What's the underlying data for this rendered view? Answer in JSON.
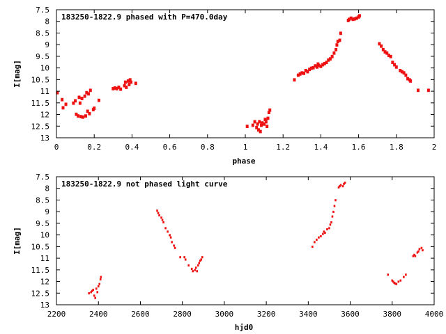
{
  "colors": {
    "points": "#ee1111",
    "frame": "#000000",
    "background": "#ffffff"
  },
  "chart_data": [
    {
      "type": "scatter",
      "title": "183250-1822.9 phased with P=470.0day",
      "xlabel": "phase",
      "ylabel": "I[mag]",
      "xlim": [
        0,
        2
      ],
      "ylim": [
        13,
        7.5
      ],
      "y_inverted": true,
      "grid": false,
      "x_ticks": [
        0,
        0.2,
        0.4,
        0.6,
        0.8,
        1,
        1.2,
        1.4,
        1.6,
        1.8,
        2
      ],
      "x_tick_labels": [
        "0",
        "0.2",
        "0.4",
        "0.6",
        "0.8",
        "1",
        "1.2",
        "1.4",
        "1.6",
        "1.8",
        "2"
      ],
      "y_ticks": [
        7.5,
        8,
        8.5,
        9,
        9.5,
        10,
        10.5,
        11,
        11.5,
        12,
        12.5,
        13
      ],
      "y_tick_labels": [
        "7.5",
        "8",
        "8.5",
        "9",
        "9.5",
        "10",
        "10.5",
        "11",
        "11.5",
        "12",
        "12.5",
        "13"
      ],
      "series": [
        {
          "points": [
            [
              0.005,
              11.05
            ],
            [
              0.03,
              11.35
            ],
            [
              0.035,
              11.7
            ],
            [
              0.05,
              11.55
            ],
            [
              0.09,
              11.5
            ],
            [
              0.1,
              11.4
            ],
            [
              0.105,
              11.98
            ],
            [
              0.115,
              12.05
            ],
            [
              0.12,
              11.25
            ],
            [
              0.125,
              11.5
            ],
            [
              0.13,
              12.08
            ],
            [
              0.135,
              11.3
            ],
            [
              0.14,
              12.1
            ],
            [
              0.15,
              11.2
            ],
            [
              0.155,
              12.05
            ],
            [
              0.16,
              11.05
            ],
            [
              0.165,
              11.85
            ],
            [
              0.17,
              11.1
            ],
            [
              0.175,
              11.95
            ],
            [
              0.18,
              10.95
            ],
            [
              0.195,
              11.78
            ],
            [
              0.2,
              11.72
            ],
            [
              0.225,
              11.38
            ],
            [
              0.3,
              10.88
            ],
            [
              0.31,
              10.85
            ],
            [
              0.32,
              10.88
            ],
            [
              0.33,
              10.82
            ],
            [
              0.34,
              10.9
            ],
            [
              0.36,
              10.75
            ],
            [
              0.365,
              10.6
            ],
            [
              0.37,
              10.82
            ],
            [
              0.38,
              10.55
            ],
            [
              0.385,
              10.7
            ],
            [
              0.39,
              10.5
            ],
            [
              0.395,
              10.6
            ],
            [
              0.42,
              10.65
            ],
            [
              1.01,
              12.5
            ],
            [
              1.04,
              12.45
            ],
            [
              1.05,
              12.3
            ],
            [
              1.06,
              12.55
            ],
            [
              1.065,
              12.4
            ],
            [
              1.07,
              12.65
            ],
            [
              1.075,
              12.3
            ],
            [
              1.08,
              12.72
            ],
            [
              1.085,
              12.45
            ],
            [
              1.09,
              12.35
            ],
            [
              1.1,
              12.4
            ],
            [
              1.105,
              12.2
            ],
            [
              1.11,
              12.3
            ],
            [
              1.115,
              12.5
            ],
            [
              1.12,
              12.15
            ],
            [
              1.125,
              11.9
            ],
            [
              1.13,
              11.8
            ],
            [
              1.26,
              10.5
            ],
            [
              1.28,
              10.3
            ],
            [
              1.29,
              10.25
            ],
            [
              1.3,
              10.2
            ],
            [
              1.31,
              10.22
            ],
            [
              1.32,
              10.1
            ],
            [
              1.33,
              10.15
            ],
            [
              1.34,
              10.05
            ],
            [
              1.35,
              10.0
            ],
            [
              1.36,
              9.98
            ],
            [
              1.37,
              9.9
            ],
            [
              1.38,
              9.95
            ],
            [
              1.385,
              9.82
            ],
            [
              1.39,
              9.88
            ],
            [
              1.4,
              9.92
            ],
            [
              1.41,
              9.85
            ],
            [
              1.42,
              9.8
            ],
            [
              1.43,
              9.75
            ],
            [
              1.44,
              9.65
            ],
            [
              1.45,
              9.6
            ],
            [
              1.46,
              9.5
            ],
            [
              1.47,
              9.35
            ],
            [
              1.48,
              9.2
            ],
            [
              1.485,
              9.0
            ],
            [
              1.49,
              8.85
            ],
            [
              1.5,
              8.8
            ],
            [
              1.505,
              8.5
            ],
            [
              1.545,
              7.95
            ],
            [
              1.55,
              7.9
            ],
            [
              1.56,
              7.85
            ],
            [
              1.57,
              7.9
            ],
            [
              1.58,
              7.88
            ],
            [
              1.59,
              7.85
            ],
            [
              1.6,
              7.8
            ],
            [
              1.605,
              7.75
            ],
            [
              1.71,
              8.95
            ],
            [
              1.72,
              9.05
            ],
            [
              1.73,
              9.2
            ],
            [
              1.74,
              9.3
            ],
            [
              1.75,
              9.35
            ],
            [
              1.76,
              9.45
            ],
            [
              1.77,
              9.5
            ],
            [
              1.78,
              9.75
            ],
            [
              1.79,
              9.85
            ],
            [
              1.8,
              9.95
            ],
            [
              1.82,
              10.1
            ],
            [
              1.83,
              10.15
            ],
            [
              1.84,
              10.2
            ],
            [
              1.85,
              10.3
            ],
            [
              1.86,
              10.45
            ],
            [
              1.87,
              10.5
            ],
            [
              1.875,
              10.55
            ],
            [
              1.915,
              10.95
            ],
            [
              1.97,
              10.95
            ]
          ]
        }
      ]
    },
    {
      "type": "scatter",
      "title": "183250-1822.9 not phased light curve",
      "xlabel": "hjd0",
      "ylabel": "I[mag]",
      "xlim": [
        2200,
        4000
      ],
      "ylim": [
        13,
        7.5
      ],
      "y_inverted": true,
      "grid": false,
      "x_ticks": [
        2200,
        2400,
        2600,
        2800,
        3000,
        3200,
        3400,
        3600,
        3800,
        4000
      ],
      "x_tick_labels": [
        "2200",
        "2400",
        "2600",
        "2800",
        "3000",
        "3200",
        "3400",
        "3600",
        "3800",
        "4000"
      ],
      "y_ticks": [
        7.5,
        8,
        8.5,
        9,
        9.5,
        10,
        10.5,
        11,
        11.5,
        12,
        12.5,
        13
      ],
      "y_tick_labels": [
        "7.5",
        "8",
        "8.5",
        "9",
        "9.5",
        "10",
        "10.5",
        "11",
        "11.5",
        "12",
        "12.5",
        "13"
      ],
      "series": [
        {
          "points": [
            [
              2355,
              12.5
            ],
            [
              2365,
              12.45
            ],
            [
              2370,
              12.4
            ],
            [
              2375,
              12.35
            ],
            [
              2380,
              12.6
            ],
            [
              2385,
              12.7
            ],
            [
              2390,
              12.3
            ],
            [
              2395,
              12.45
            ],
            [
              2400,
              12.2
            ],
            [
              2405,
              12.1
            ],
            [
              2410,
              11.9
            ],
            [
              2412,
              11.8
            ],
            [
              2680,
              8.95
            ],
            [
              2685,
              9.05
            ],
            [
              2690,
              9.15
            ],
            [
              2700,
              9.25
            ],
            [
              2705,
              9.35
            ],
            [
              2710,
              9.45
            ],
            [
              2720,
              9.7
            ],
            [
              2730,
              9.85
            ],
            [
              2740,
              10.0
            ],
            [
              2745,
              10.1
            ],
            [
              2750,
              10.3
            ],
            [
              2760,
              10.45
            ],
            [
              2765,
              10.55
            ],
            [
              2790,
              10.95
            ],
            [
              2810,
              10.95
            ],
            [
              2815,
              11.05
            ],
            [
              2830,
              11.3
            ],
            [
              2845,
              11.45
            ],
            [
              2850,
              11.55
            ],
            [
              2860,
              11.5
            ],
            [
              2865,
              11.4
            ],
            [
              2870,
              11.55
            ],
            [
              2875,
              11.3
            ],
            [
              2880,
              11.2
            ],
            [
              2885,
              11.1
            ],
            [
              2890,
              11.05
            ],
            [
              2895,
              10.95
            ],
            [
              3420,
              10.5
            ],
            [
              3430,
              10.3
            ],
            [
              3440,
              10.2
            ],
            [
              3450,
              10.1
            ],
            [
              3460,
              10.05
            ],
            [
              3470,
              9.95
            ],
            [
              3475,
              9.85
            ],
            [
              3480,
              9.9
            ],
            [
              3490,
              9.75
            ],
            [
              3500,
              9.7
            ],
            [
              3505,
              9.55
            ],
            [
              3510,
              9.45
            ],
            [
              3515,
              9.2
            ],
            [
              3520,
              9.0
            ],
            [
              3525,
              8.75
            ],
            [
              3530,
              8.5
            ],
            [
              3545,
              7.95
            ],
            [
              3550,
              7.9
            ],
            [
              3555,
              7.85
            ],
            [
              3565,
              7.9
            ],
            [
              3570,
              7.8
            ],
            [
              3575,
              7.75
            ],
            [
              3780,
              11.7
            ],
            [
              3800,
              11.95
            ],
            [
              3805,
              12.0
            ],
            [
              3810,
              12.05
            ],
            [
              3815,
              12.08
            ],
            [
              3820,
              12.1
            ],
            [
              3830,
              12.0
            ],
            [
              3840,
              11.95
            ],
            [
              3855,
              11.8
            ],
            [
              3865,
              11.7
            ],
            [
              3900,
              10.9
            ],
            [
              3905,
              10.85
            ],
            [
              3910,
              10.9
            ],
            [
              3920,
              10.75
            ],
            [
              3925,
              10.7
            ],
            [
              3930,
              10.6
            ],
            [
              3940,
              10.55
            ],
            [
              3945,
              10.65
            ]
          ]
        }
      ]
    }
  ]
}
